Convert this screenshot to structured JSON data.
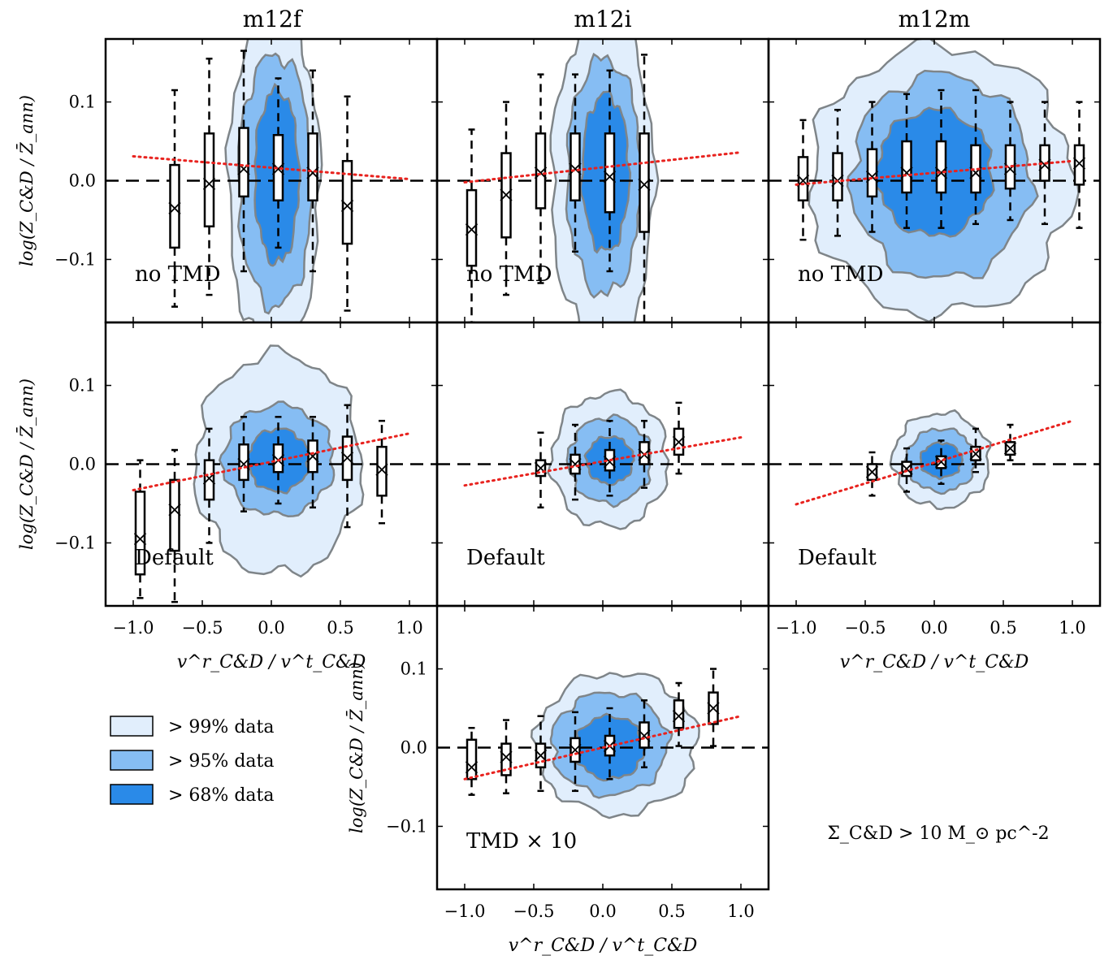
{
  "figure": {
    "columns": [
      "m12f",
      "m12i",
      "m12m"
    ],
    "ylabel": "log(Z_C&D / Z̄_ann)",
    "xlabel": "v^r_C&D / v^t_C&D",
    "legend": [
      {
        "label": "> 99% data",
        "color": "#e1eefc"
      },
      {
        "label": "> 95% data",
        "color": "#86bdf3"
      },
      {
        "label": "> 68% data",
        "color": "#2a8ae8"
      }
    ],
    "annotation": "Σ_C&D > 10 M_⊙ pc^-2",
    "xticks": [
      "−1.0",
      "−0.5",
      "0.0",
      "0.5",
      "1.0"
    ],
    "yticks": [
      "0.1",
      "0.0",
      "−0.1"
    ]
  },
  "chart_data": [
    {
      "type": "box",
      "panel": "m12f no TMD",
      "label": "no TMD",
      "xlim": [
        -1.2,
        1.2
      ],
      "ylim": [
        -0.18,
        0.18
      ],
      "fit": {
        "x": [
          -1.0,
          1.0
        ],
        "y": [
          0.031,
          0.002
        ]
      },
      "contours": [
        {
          "level": "99%",
          "cx": 0.02,
          "cy": 0.0,
          "rx": 0.33,
          "ry": 0.22
        },
        {
          "level": "95%",
          "cx": 0.03,
          "cy": 0.0,
          "rx": 0.27,
          "ry": 0.16
        },
        {
          "level": "68%",
          "cx": 0.04,
          "cy": 0.005,
          "rx": 0.16,
          "ry": 0.11
        }
      ],
      "boxes": [
        {
          "x": -0.7,
          "q1": -0.085,
          "q3": 0.02,
          "median": -0.035,
          "lo": -0.16,
          "hi": 0.115
        },
        {
          "x": -0.45,
          "q1": -0.058,
          "q3": 0.06,
          "median": -0.004,
          "lo": -0.145,
          "hi": 0.155
        },
        {
          "x": -0.2,
          "q1": -0.02,
          "q3": 0.067,
          "median": 0.015,
          "lo": -0.115,
          "hi": 0.165
        },
        {
          "x": 0.05,
          "q1": -0.025,
          "q3": 0.058,
          "median": 0.015,
          "lo": -0.085,
          "hi": 0.13
        },
        {
          "x": 0.3,
          "q1": -0.025,
          "q3": 0.06,
          "median": 0.01,
          "lo": -0.115,
          "hi": 0.14
        },
        {
          "x": 0.55,
          "q1": -0.08,
          "q3": 0.025,
          "median": -0.032,
          "lo": -0.165,
          "hi": 0.107
        }
      ]
    },
    {
      "type": "box",
      "panel": "m12i no TMD",
      "label": "no TMD",
      "xlim": [
        -1.2,
        1.2
      ],
      "ylim": [
        -0.18,
        0.18
      ],
      "fit": {
        "x": [
          -1.0,
          1.0
        ],
        "y": [
          -0.002,
          0.036
        ]
      },
      "contours": [
        {
          "level": "99%",
          "cx": 0.0,
          "cy": 0.0,
          "rx": 0.37,
          "ry": 0.21
        },
        {
          "level": "95%",
          "cx": 0.01,
          "cy": 0.005,
          "rx": 0.27,
          "ry": 0.15
        },
        {
          "level": "68%",
          "cx": 0.02,
          "cy": 0.01,
          "rx": 0.17,
          "ry": 0.1
        }
      ],
      "boxes": [
        {
          "x": -0.95,
          "q1": -0.108,
          "q3": -0.012,
          "median": -0.062,
          "lo": -0.18,
          "hi": 0.065
        },
        {
          "x": -0.7,
          "q1": -0.072,
          "q3": 0.035,
          "median": -0.018,
          "lo": -0.145,
          "hi": 0.1
        },
        {
          "x": -0.45,
          "q1": -0.035,
          "q3": 0.06,
          "median": 0.01,
          "lo": -0.13,
          "hi": 0.135
        },
        {
          "x": -0.2,
          "q1": -0.025,
          "q3": 0.06,
          "median": 0.015,
          "lo": -0.09,
          "hi": 0.135
        },
        {
          "x": 0.05,
          "q1": -0.04,
          "q3": 0.06,
          "median": 0.005,
          "lo": -0.115,
          "hi": 0.14
        },
        {
          "x": 0.3,
          "q1": -0.065,
          "q3": 0.06,
          "median": -0.005,
          "lo": -0.18,
          "hi": 0.16
        }
      ]
    },
    {
      "type": "box",
      "panel": "m12m no TMD",
      "label": "no TMD",
      "xlim": [
        -1.2,
        1.2
      ],
      "ylim": [
        -0.18,
        0.18
      ],
      "fit": {
        "x": [
          -1.0,
          1.0
        ],
        "y": [
          -0.005,
          0.025
        ]
      },
      "contours": [
        {
          "level": "99%",
          "cx": 0.05,
          "cy": 0.0,
          "rx": 0.95,
          "ry": 0.17
        },
        {
          "level": "95%",
          "cx": 0.05,
          "cy": 0.005,
          "rx": 0.65,
          "ry": 0.13
        },
        {
          "level": "68%",
          "cx": 0.0,
          "cy": 0.01,
          "rx": 0.42,
          "ry": 0.08
        }
      ],
      "boxes": [
        {
          "x": -0.95,
          "q1": -0.025,
          "q3": 0.03,
          "median": 0.0,
          "lo": -0.075,
          "hi": 0.077
        },
        {
          "x": -0.7,
          "q1": -0.025,
          "q3": 0.035,
          "median": 0.0,
          "lo": -0.07,
          "hi": 0.09
        },
        {
          "x": -0.45,
          "q1": -0.02,
          "q3": 0.04,
          "median": 0.005,
          "lo": -0.065,
          "hi": 0.1
        },
        {
          "x": -0.2,
          "q1": -0.015,
          "q3": 0.05,
          "median": 0.01,
          "lo": -0.06,
          "hi": 0.11
        },
        {
          "x": 0.05,
          "q1": -0.015,
          "q3": 0.05,
          "median": 0.01,
          "lo": -0.06,
          "hi": 0.115
        },
        {
          "x": 0.3,
          "q1": -0.015,
          "q3": 0.045,
          "median": 0.01,
          "lo": -0.055,
          "hi": 0.115
        },
        {
          "x": 0.55,
          "q1": -0.01,
          "q3": 0.045,
          "median": 0.015,
          "lo": -0.05,
          "hi": 0.1
        },
        {
          "x": 0.8,
          "q1": 0.0,
          "q3": 0.045,
          "median": 0.02,
          "lo": -0.055,
          "hi": 0.1
        },
        {
          "x": 1.05,
          "q1": -0.005,
          "q3": 0.045,
          "median": 0.022,
          "lo": -0.06,
          "hi": 0.1
        }
      ]
    },
    {
      "type": "box",
      "panel": "m12f Default",
      "label": "Default",
      "xlim": [
        -1.2,
        1.2
      ],
      "ylim": [
        -0.18,
        0.18
      ],
      "fit": {
        "x": [
          -1.0,
          1.0
        ],
        "y": [
          -0.033,
          0.039
        ]
      },
      "contours": [
        {
          "level": "99%",
          "cx": 0.05,
          "cy": 0.0,
          "rx": 0.6,
          "ry": 0.14
        },
        {
          "level": "95%",
          "cx": 0.05,
          "cy": 0.005,
          "rx": 0.4,
          "ry": 0.07
        },
        {
          "level": "68%",
          "cx": 0.05,
          "cy": 0.005,
          "rx": 0.22,
          "ry": 0.04
        }
      ],
      "boxes": [
        {
          "x": -0.95,
          "q1": -0.14,
          "q3": -0.035,
          "median": -0.095,
          "lo": -0.17,
          "hi": 0.005
        },
        {
          "x": -0.7,
          "q1": -0.11,
          "q3": -0.02,
          "median": -0.058,
          "lo": -0.175,
          "hi": 0.018
        },
        {
          "x": -0.45,
          "q1": -0.045,
          "q3": 0.005,
          "median": -0.018,
          "lo": -0.1,
          "hi": 0.045
        },
        {
          "x": -0.2,
          "q1": -0.02,
          "q3": 0.025,
          "median": 0.0,
          "lo": -0.06,
          "hi": 0.06
        },
        {
          "x": 0.05,
          "q1": -0.01,
          "q3": 0.025,
          "median": 0.005,
          "lo": -0.05,
          "hi": 0.06
        },
        {
          "x": 0.3,
          "q1": -0.01,
          "q3": 0.03,
          "median": 0.01,
          "lo": -0.055,
          "hi": 0.06
        },
        {
          "x": 0.55,
          "q1": -0.02,
          "q3": 0.035,
          "median": 0.008,
          "lo": -0.08,
          "hi": 0.075
        },
        {
          "x": 0.8,
          "q1": -0.04,
          "q3": 0.022,
          "median": -0.007,
          "lo": -0.075,
          "hi": 0.055
        }
      ]
    },
    {
      "type": "box",
      "panel": "m12i Default",
      "label": "Default",
      "xlim": [
        -1.2,
        1.2
      ],
      "ylim": [
        -0.18,
        0.18
      ],
      "fit": {
        "x": [
          -1.0,
          1.0
        ],
        "y": [
          -0.027,
          0.034
        ]
      },
      "contours": [
        {
          "level": "99%",
          "cx": 0.05,
          "cy": 0.005,
          "rx": 0.42,
          "ry": 0.085
        },
        {
          "level": "95%",
          "cx": 0.05,
          "cy": 0.005,
          "rx": 0.3,
          "ry": 0.055
        },
        {
          "level": "68%",
          "cx": 0.05,
          "cy": 0.005,
          "rx": 0.17,
          "ry": 0.03
        }
      ],
      "boxes": [
        {
          "x": -0.45,
          "q1": -0.015,
          "q3": 0.005,
          "median": -0.005,
          "lo": -0.055,
          "hi": 0.04
        },
        {
          "x": -0.2,
          "q1": -0.012,
          "q3": 0.012,
          "median": 0.0,
          "lo": -0.045,
          "hi": 0.05
        },
        {
          "x": 0.05,
          "q1": -0.008,
          "q3": 0.018,
          "median": 0.003,
          "lo": -0.04,
          "hi": 0.055
        },
        {
          "x": 0.3,
          "q1": 0.0,
          "q3": 0.028,
          "median": 0.012,
          "lo": -0.03,
          "hi": 0.055
        },
        {
          "x": 0.55,
          "q1": 0.012,
          "q3": 0.045,
          "median": 0.028,
          "lo": -0.012,
          "hi": 0.078
        }
      ]
    },
    {
      "type": "box",
      "panel": "m12m Default",
      "label": "Default",
      "xlim": [
        -1.2,
        1.2
      ],
      "ylim": [
        -0.18,
        0.18
      ],
      "fit": {
        "x": [
          -1.0,
          1.0
        ],
        "y": [
          -0.051,
          0.055
        ]
      },
      "contours": [
        {
          "level": "99%",
          "cx": 0.05,
          "cy": 0.005,
          "rx": 0.35,
          "ry": 0.06
        },
        {
          "level": "95%",
          "cx": 0.05,
          "cy": 0.005,
          "rx": 0.25,
          "ry": 0.04
        },
        {
          "level": "68%",
          "cx": 0.05,
          "cy": 0.005,
          "rx": 0.15,
          "ry": 0.022
        }
      ],
      "boxes": [
        {
          "x": -0.45,
          "q1": -0.02,
          "q3": 0.0,
          "median": -0.01,
          "lo": -0.04,
          "hi": 0.015
        },
        {
          "x": -0.2,
          "q1": -0.015,
          "q3": 0.003,
          "median": -0.006,
          "lo": -0.035,
          "hi": 0.02
        },
        {
          "x": 0.05,
          "q1": -0.005,
          "q3": 0.01,
          "median": 0.003,
          "lo": -0.025,
          "hi": 0.03
        },
        {
          "x": 0.3,
          "q1": 0.005,
          "q3": 0.022,
          "median": 0.013,
          "lo": -0.01,
          "hi": 0.045
        },
        {
          "x": 0.55,
          "q1": 0.012,
          "q3": 0.028,
          "median": 0.02,
          "lo": 0.005,
          "hi": 0.05
        }
      ]
    },
    {
      "type": "box",
      "panel": "m12i TMD x 10",
      "label": "TMD × 10",
      "xlim": [
        -1.2,
        1.2
      ],
      "ylim": [
        -0.18,
        0.18
      ],
      "fit": {
        "x": [
          -1.0,
          1.0
        ],
        "y": [
          -0.04,
          0.04
        ]
      },
      "contours": [
        {
          "level": "99%",
          "cx": 0.1,
          "cy": 0.005,
          "rx": 0.58,
          "ry": 0.09
        },
        {
          "level": "95%",
          "cx": 0.05,
          "cy": 0.005,
          "rx": 0.42,
          "ry": 0.065
        },
        {
          "level": "68%",
          "cx": 0.05,
          "cy": 0.0,
          "rx": 0.25,
          "ry": 0.04
        }
      ],
      "boxes": [
        {
          "x": -0.95,
          "q1": -0.04,
          "q3": 0.01,
          "median": -0.025,
          "lo": -0.06,
          "hi": 0.025
        },
        {
          "x": -0.7,
          "q1": -0.035,
          "q3": 0.005,
          "median": -0.012,
          "lo": -0.058,
          "hi": 0.035
        },
        {
          "x": -0.45,
          "q1": -0.025,
          "q3": 0.005,
          "median": -0.01,
          "lo": -0.055,
          "hi": 0.04
        },
        {
          "x": -0.2,
          "q1": -0.018,
          "q3": 0.012,
          "median": -0.003,
          "lo": -0.055,
          "hi": 0.045
        },
        {
          "x": 0.05,
          "q1": -0.01,
          "q3": 0.015,
          "median": 0.002,
          "lo": -0.04,
          "hi": 0.05
        },
        {
          "x": 0.3,
          "q1": 0.0,
          "q3": 0.032,
          "median": 0.015,
          "lo": -0.025,
          "hi": 0.06
        },
        {
          "x": 0.55,
          "q1": 0.025,
          "q3": 0.06,
          "median": 0.04,
          "lo": 0.002,
          "hi": 0.082
        },
        {
          "x": 0.8,
          "q1": 0.03,
          "q3": 0.07,
          "median": 0.05,
          "lo": 0.002,
          "hi": 0.1
        }
      ]
    }
  ]
}
